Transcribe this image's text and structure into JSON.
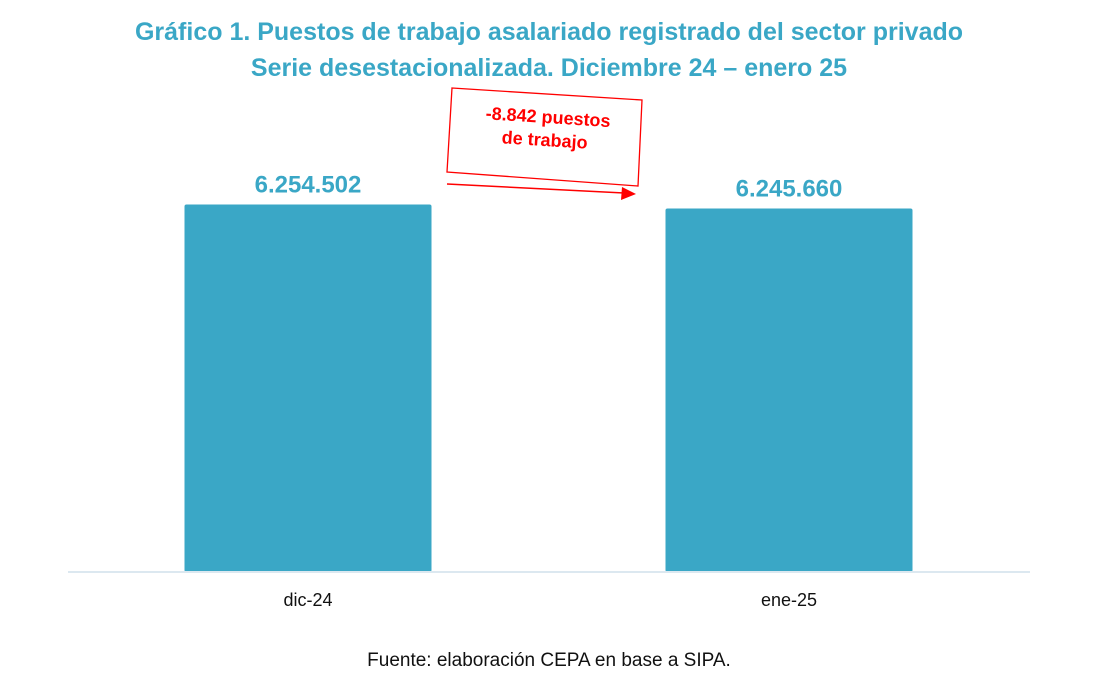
{
  "chart_data": {
    "type": "bar",
    "title": "Gráfico 1. Puestos de trabajo asalariado registrado del sector privado",
    "subtitle": "Serie desestacionalizada. Diciembre 24 – enero 25",
    "categories": [
      "dic-24",
      "ene-25"
    ],
    "values": [
      6254502,
      6245660
    ],
    "value_labels": [
      "6.254.502",
      "6.245.660"
    ],
    "xlabel": "",
    "ylabel": "",
    "ylim": [
      5440000,
      6260000
    ],
    "grid": false,
    "annotation": {
      "line1": "-8.842 puestos",
      "line2": "de trabajo"
    },
    "source": "Fuente: elaboración CEPA en base a SIPA.",
    "colors": {
      "bar": "#3aa7c6",
      "annotation": "#ff0000",
      "axis": "#dce8f0"
    }
  }
}
